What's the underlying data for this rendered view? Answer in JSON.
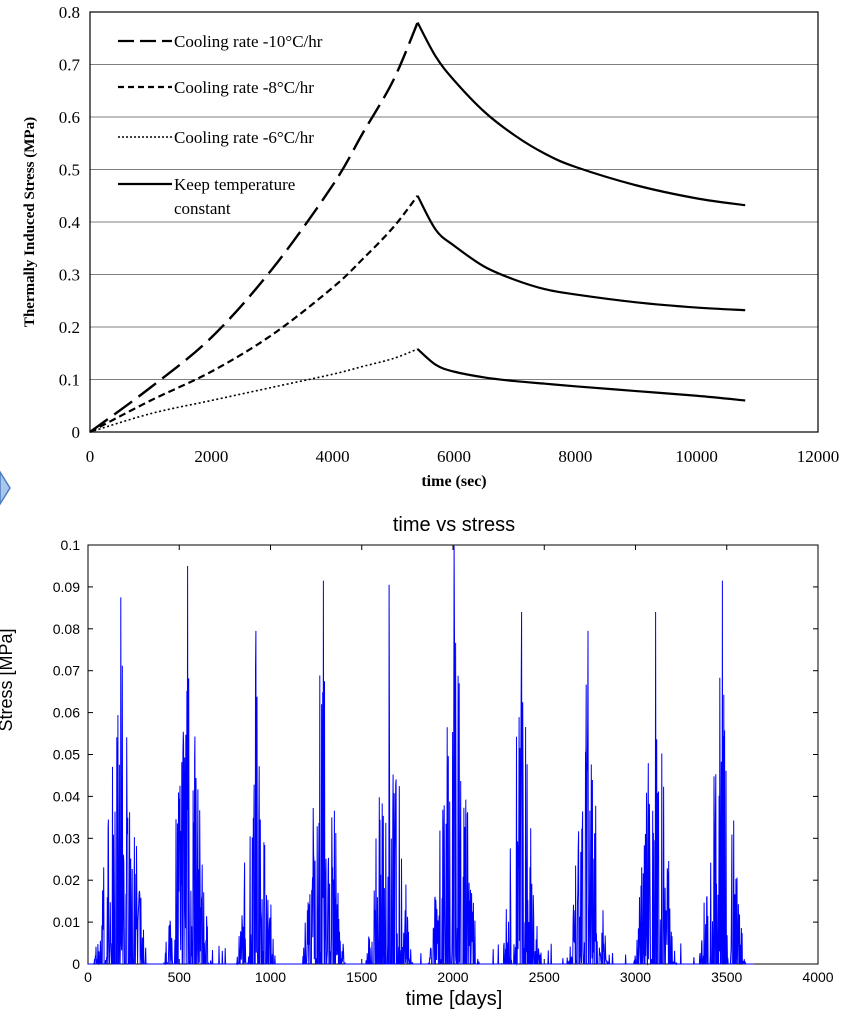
{
  "chart_data": [
    {
      "type": "line",
      "title": "",
      "xlabel": "time (sec)",
      "ylabel": "Thermally Induced Stress (MPa)",
      "xlim": [
        0,
        12000
      ],
      "ylim": [
        0,
        0.8
      ],
      "xticks": [
        "0",
        "2000",
        "4000",
        "6000",
        "8000",
        "10000",
        "12000"
      ],
      "yticks": [
        "0",
        "0.1",
        "0.2",
        "0.3",
        "0.4",
        "0.5",
        "0.6",
        "0.7",
        "0.8"
      ],
      "grid": "horizontal",
      "legend_position": "top-left",
      "legend": [
        "Cooling rate -10°C/hr",
        "Cooling rate -8°C/hr",
        "Cooling rate -6°C/hr",
        "Keep temperature",
        "constant"
      ],
      "series": [
        {
          "name": "Cooling rate -10°C/hr",
          "x": [
            0,
            1000,
            2000,
            3000,
            4000,
            4500,
            5000,
            5400
          ],
          "y": [
            0,
            0.085,
            0.18,
            0.31,
            0.47,
            0.57,
            0.67,
            0.78
          ]
        },
        {
          "name": "Cooling rate -8°C/hr",
          "x": [
            0,
            1000,
            2000,
            3000,
            4000,
            4500,
            5000,
            5400
          ],
          "y": [
            0,
            0.06,
            0.115,
            0.185,
            0.275,
            0.33,
            0.39,
            0.45
          ]
        },
        {
          "name": "Cooling rate -6°C/hr",
          "x": [
            0,
            1000,
            2000,
            3000,
            4000,
            4500,
            5000,
            5400
          ],
          "y": [
            0,
            0.035,
            0.06,
            0.085,
            0.11,
            0.125,
            0.14,
            0.158
          ]
        },
        {
          "name": "Keep temperature constant",
          "segments": [
            {
              "x": [
                5400,
                5700,
                6000,
                6500,
                7000,
                7500,
                8000,
                9000,
                10000,
                10800
              ],
              "y": [
                0.78,
                0.715,
                0.67,
                0.61,
                0.565,
                0.53,
                0.505,
                0.47,
                0.445,
                0.432
              ]
            },
            {
              "x": [
                5400,
                5700,
                6000,
                6500,
                7000,
                7500,
                8000,
                9000,
                10000,
                10800
              ],
              "y": [
                0.45,
                0.385,
                0.355,
                0.315,
                0.29,
                0.272,
                0.262,
                0.247,
                0.237,
                0.232
              ]
            },
            {
              "x": [
                5400,
                5700,
                6000,
                6500,
                7000,
                7500,
                8000,
                9000,
                10000,
                10800
              ],
              "y": [
                0.158,
                0.128,
                0.115,
                0.104,
                0.097,
                0.092,
                0.087,
                0.078,
                0.069,
                0.06
              ]
            }
          ]
        }
      ]
    },
    {
      "type": "line",
      "title": "time vs stress",
      "xlabel": "time [days]",
      "ylabel": "Stress [MPa]",
      "xlim": [
        0,
        4000
      ],
      "ylim": [
        0,
        0.1
      ],
      "xticks": [
        "0",
        "500",
        "1000",
        "1500",
        "2000",
        "2500",
        "3000",
        "3500",
        "4000"
      ],
      "yticks": [
        "0",
        "0.01",
        "0.02",
        "0.03",
        "0.04",
        "0.05",
        "0.06",
        "0.07",
        "0.08",
        "0.09",
        "0.1"
      ],
      "grid": "off",
      "color": "#0000ff",
      "bursts": [
        {
          "center": 180,
          "halfwidth": 150,
          "peak": 0.0875,
          "peak_day": 180,
          "secondary": [
            0.0575,
            0.0685,
            0.043
          ]
        },
        {
          "center": 545,
          "halfwidth": 130,
          "peak": 0.095,
          "peak_day": 545,
          "secondary": [
            0.067,
            0.0765,
            0.05
          ]
        },
        {
          "center": 920,
          "halfwidth": 110,
          "peak": 0.0795,
          "peak_day": 920,
          "secondary": [
            0.048,
            0.046,
            0.025
          ]
        },
        {
          "center": 1290,
          "halfwidth": 120,
          "peak": 0.0915,
          "peak_day": 1290,
          "secondary": [
            0.0625,
            0.0675,
            0.044
          ]
        },
        {
          "center": 1650,
          "halfwidth": 130,
          "peak": 0.0905,
          "peak_day": 1650,
          "secondary": [
            0.058,
            0.0655,
            0.036
          ]
        },
        {
          "center": 2005,
          "halfwidth": 140,
          "peak": 0.0998,
          "peak_day": 2005,
          "secondary": [
            0.067,
            0.083,
            0.052
          ]
        },
        {
          "center": 2375,
          "halfwidth": 110,
          "peak": 0.084,
          "peak_day": 2375,
          "secondary": [
            0.055,
            0.046,
            0.035
          ]
        },
        {
          "center": 2740,
          "halfwidth": 110,
          "peak": 0.0795,
          "peak_day": 2740,
          "secondary": [
            0.055,
            0.059,
            0.046
          ]
        },
        {
          "center": 3110,
          "halfwidth": 120,
          "peak": 0.084,
          "peak_day": 3110,
          "secondary": [
            0.057,
            0.078,
            0.035
          ]
        },
        {
          "center": 3475,
          "halfwidth": 130,
          "peak": 0.0915,
          "peak_day": 3475,
          "secondary": [
            0.062,
            0.073,
            0.057
          ]
        }
      ]
    }
  ]
}
